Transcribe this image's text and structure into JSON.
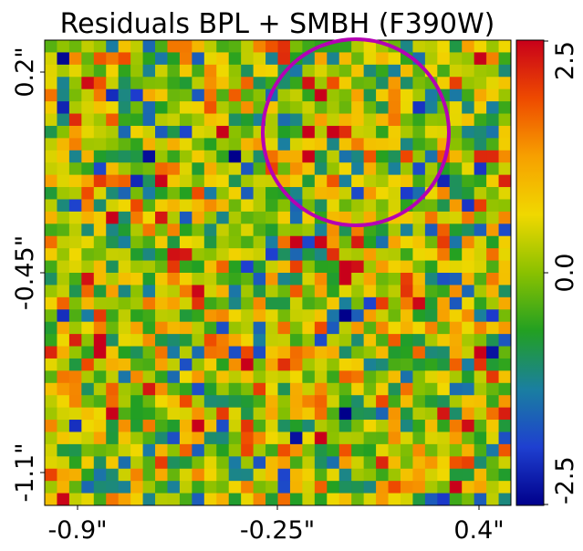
{
  "chart_data": {
    "type": "heatmap",
    "title": "Residuals BPL + SMBH (F390W)",
    "x_ticks": [
      "-0.9\"",
      "-0.25\"",
      "0.4\""
    ],
    "y_ticks": [
      "0.2\"",
      "-0.45\"",
      "-1.1\""
    ],
    "colorbar": {
      "ticks": [
        "2.5",
        "0.0",
        "-2.5"
      ],
      "range": [
        -2.5,
        2.5
      ],
      "colormap": [
        "#00008b",
        "#1e3fd0",
        "#1a7fa0",
        "#22a022",
        "#8ac100",
        "#f0d800",
        "#f7a000",
        "#ee4a00",
        "#c8001a"
      ]
    },
    "grid": {
      "cols": 38,
      "rows": 38,
      "seed": 1337
    },
    "circle_annotation": {
      "color": "#b400b4"
    },
    "grid_lines": false
  }
}
